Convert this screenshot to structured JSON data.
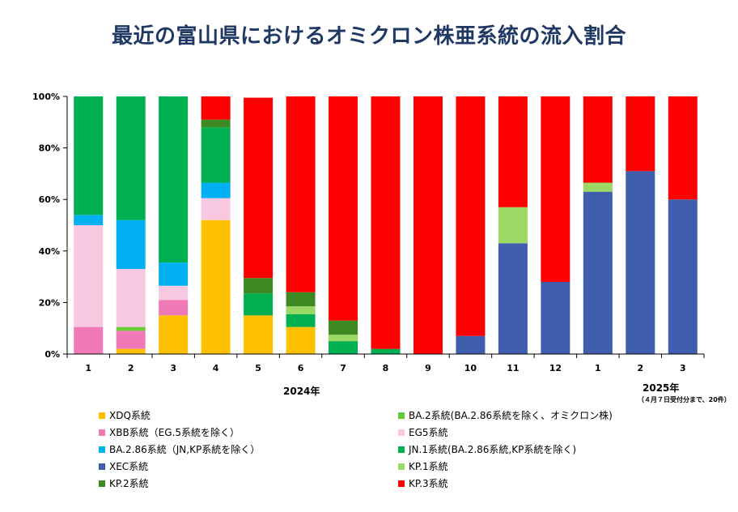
{
  "title": "最近の富山県におけるオミクロン株亜系統の流入割合",
  "year_2024": "2024年",
  "year_2025": "2025年",
  "note_2025": "（４月７日受付分まで、20件）",
  "chart_data": {
    "type": "bar",
    "stacked": true,
    "categories": [
      "1",
      "2",
      "3",
      "4",
      "5",
      "6",
      "7",
      "8",
      "9",
      "10",
      "11",
      "12",
      "1",
      "2",
      "3"
    ],
    "y_ticks": [
      "0%",
      "20%",
      "40%",
      "60%",
      "80%",
      "100%"
    ],
    "ylim": [
      0,
      100
    ],
    "legend_position": "bottom",
    "series": [
      {
        "name": "XEC系統",
        "color": "#3f5fae",
        "values": [
          0,
          0,
          0,
          0,
          0,
          0,
          0,
          0,
          0,
          7,
          43,
          28,
          63,
          71,
          60
        ]
      },
      {
        "name": "XDQ系統",
        "color": "#ffc000",
        "values": [
          0,
          2,
          15,
          52,
          15,
          10.5,
          0,
          0,
          0,
          0,
          0,
          0,
          0,
          0,
          0
        ]
      },
      {
        "name": "XBB系統（EG.5系統を除く）",
        "color": "#f07ab8",
        "values": [
          10.5,
          7,
          6,
          0,
          0,
          0,
          0,
          0,
          0,
          0,
          0,
          0,
          0,
          0,
          0
        ]
      },
      {
        "name": "BA.2系統(BA.2.86系統を除く、オミクロン株)",
        "color": "#66cc33",
        "values": [
          0,
          1.5,
          0,
          0,
          0,
          0,
          0,
          0,
          0,
          0,
          0,
          0,
          0,
          0,
          0
        ]
      },
      {
        "name": "JN.1系統(BA.2.86系統,KP系統を除く)",
        "color": "#00b050",
        "values": [
          0,
          0,
          0,
          0,
          8.5,
          5,
          5,
          2,
          0,
          0,
          0,
          0,
          0,
          0,
          0
        ]
      },
      {
        "name": "KP.1系統",
        "color": "#9bd964",
        "values": [
          0,
          0,
          0,
          0,
          0,
          3,
          2.5,
          0,
          0,
          0,
          14,
          0,
          3.5,
          0,
          0
        ]
      },
      {
        "name": "EG5系統",
        "color": "#f8c8e0",
        "values": [
          39.5,
          22.5,
          5.5,
          8.5,
          0,
          0,
          0,
          0,
          0,
          0,
          0,
          0,
          0,
          0,
          0
        ]
      },
      {
        "name": "BA.2.86系統（JN,KP系統を除く）",
        "color": "#00b0f0",
        "values": [
          4,
          19,
          9,
          6,
          0,
          0,
          0,
          0,
          0,
          0,
          0,
          0,
          0,
          0,
          0
        ]
      },
      {
        "name": "KP.2系統",
        "color": "#3e8a22",
        "values": [
          0,
          0,
          0,
          0,
          6,
          5.5,
          5.5,
          0,
          0,
          0,
          0,
          0,
          0,
          0,
          0
        ]
      },
      {
        "name": "JN.1系統 (upper)",
        "color": "#00b050",
        "values": [
          46,
          48,
          64.5,
          21.5,
          0,
          0,
          0,
          0,
          0,
          0,
          0,
          0,
          0,
          0,
          0
        ]
      },
      {
        "name": "KP.2系統 (upper)",
        "color": "#3e8a22",
        "values": [
          0,
          0,
          0,
          3,
          0,
          0,
          0,
          0,
          0,
          0,
          0,
          0,
          0,
          0,
          0
        ]
      },
      {
        "name": "KP.3系統",
        "color": "#ff0000",
        "values": [
          0,
          0,
          0,
          9,
          70,
          76,
          87,
          98,
          100,
          93,
          43,
          72,
          33.5,
          29,
          40
        ]
      }
    ],
    "legend": [
      {
        "label": "XDQ系統",
        "color": "#ffc000"
      },
      {
        "label": "BA.2系統(BA.2.86系統を除く、オミクロン株)",
        "color": "#66cc33"
      },
      {
        "label": "XBB系統（EG.5系統を除く）",
        "color": "#f07ab8"
      },
      {
        "label": "EG5系統",
        "color": "#f8c8e0"
      },
      {
        "label": "BA.2.86系統（JN,KP系統を除く）",
        "color": "#00b0f0"
      },
      {
        "label": "JN.1系統(BA.2.86系統,KP系統を除く)",
        "color": "#00b050"
      },
      {
        "label": "XEC系統",
        "color": "#3f5fae"
      },
      {
        "label": "KP.1系統",
        "color": "#9bd964"
      },
      {
        "label": "KP.2系統",
        "color": "#3e8a22"
      },
      {
        "label": "KP.3系統",
        "color": "#ff0000"
      }
    ]
  }
}
